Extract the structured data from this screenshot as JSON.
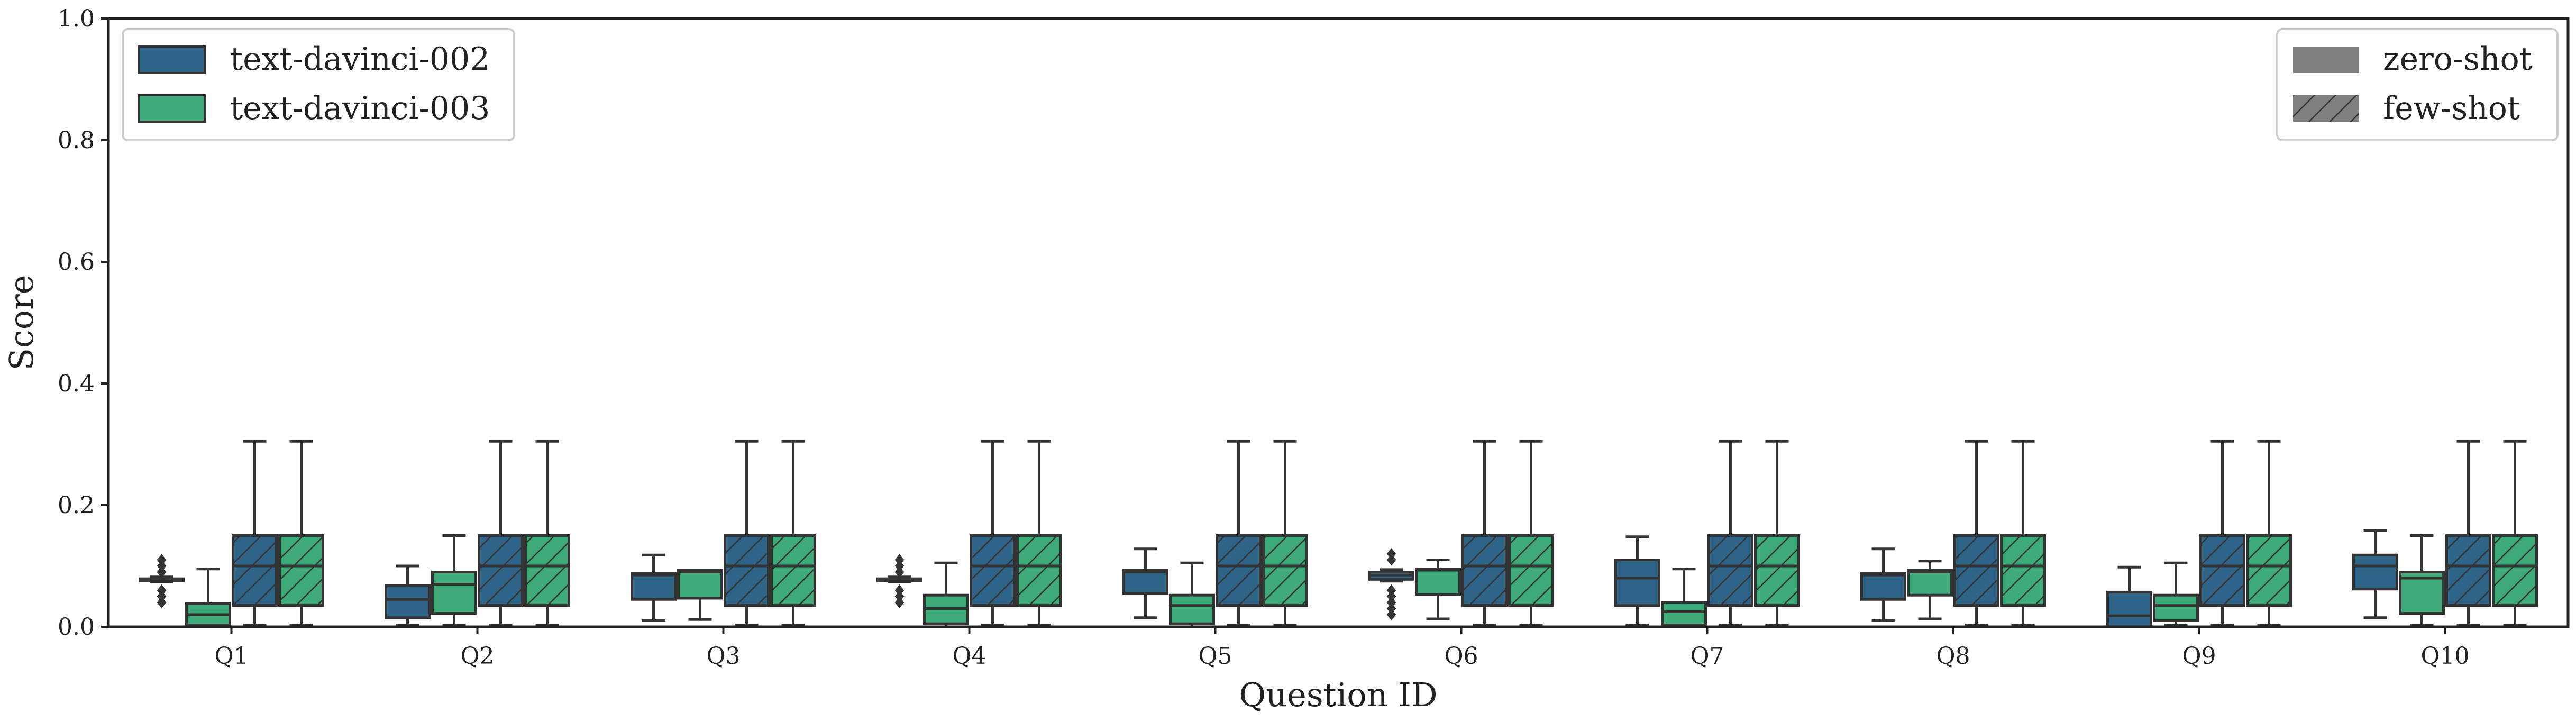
{
  "colors": {
    "text_davinci_002": "#2f6489",
    "text_davinci_003": "#3eaa78",
    "edge": "#333333",
    "legend_style_fill": "#808080"
  },
  "legend_models": [
    {
      "label": "text-davinci-002",
      "color_key": "text_davinci_002"
    },
    {
      "label": "text-davinci-003",
      "color_key": "text_davinci_003"
    }
  ],
  "legend_shots": [
    {
      "label": "zero-shot",
      "hatch": false
    },
    {
      "label": "few-shot",
      "hatch": true
    }
  ],
  "chart_data": {
    "type": "box",
    "xlabel": "Question ID",
    "ylabel": "Score",
    "ylim": [
      0,
      1.0
    ],
    "yticks": [
      "0.0",
      "0.2",
      "0.4",
      "0.6",
      "0.8",
      "1.0"
    ],
    "ytick_values": [
      0,
      0.2,
      0.4,
      0.6,
      0.8,
      1.0
    ],
    "grid": false,
    "categories": [
      "Q1",
      "Q2",
      "Q3",
      "Q4",
      "Q5",
      "Q6",
      "Q7",
      "Q8",
      "Q9",
      "Q10"
    ],
    "series": [
      {
        "name": "text-davinci-002 zero-shot",
        "model": "text_davinci_002",
        "hatch": false,
        "boxes": [
          {
            "whislo": 0.074,
            "q1": 0.076,
            "med": 0.078,
            "q3": 0.079,
            "whishi": 0.082,
            "fliers": [
              0.04,
              0.05,
              0.06,
              0.09,
              0.1,
              0.11
            ]
          },
          {
            "whislo": 0.003,
            "q1": 0.015,
            "med": 0.045,
            "q3": 0.068,
            "whishi": 0.1,
            "fliers": []
          },
          {
            "whislo": 0.01,
            "q1": 0.045,
            "med": 0.085,
            "q3": 0.088,
            "whishi": 0.118,
            "fliers": []
          },
          {
            "whislo": 0.074,
            "q1": 0.076,
            "med": 0.078,
            "q3": 0.079,
            "whishi": 0.082,
            "fliers": [
              0.04,
              0.05,
              0.06,
              0.09,
              0.1,
              0.11
            ]
          },
          {
            "whislo": 0.015,
            "q1": 0.055,
            "med": 0.09,
            "q3": 0.093,
            "whishi": 0.128,
            "fliers": []
          },
          {
            "whislo": 0.075,
            "q1": 0.078,
            "med": 0.085,
            "q3": 0.09,
            "whishi": 0.094,
            "fliers": [
              0.02,
              0.03,
              0.04,
              0.05,
              0.06,
              0.11,
              0.12
            ]
          },
          {
            "whislo": 0.003,
            "q1": 0.035,
            "med": 0.08,
            "q3": 0.11,
            "whishi": 0.148,
            "fliers": []
          },
          {
            "whislo": 0.01,
            "q1": 0.045,
            "med": 0.085,
            "q3": 0.088,
            "whishi": 0.128,
            "fliers": []
          },
          {
            "whislo": 0.0,
            "q1": 0.0,
            "med": 0.018,
            "q3": 0.057,
            "whishi": 0.098,
            "fliers": []
          },
          {
            "whislo": 0.015,
            "q1": 0.062,
            "med": 0.1,
            "q3": 0.118,
            "whishi": 0.158,
            "fliers": []
          }
        ]
      },
      {
        "name": "text-davinci-003 zero-shot",
        "model": "text_davinci_003",
        "hatch": false,
        "boxes": [
          {
            "whislo": 0.0,
            "q1": 0.003,
            "med": 0.02,
            "q3": 0.038,
            "whishi": 0.095,
            "fliers": []
          },
          {
            "whislo": 0.003,
            "q1": 0.022,
            "med": 0.07,
            "q3": 0.09,
            "whishi": 0.15,
            "fliers": []
          },
          {
            "whislo": 0.012,
            "q1": 0.047,
            "med": 0.09,
            "q3": 0.093,
            "whishi": 0.093,
            "fliers": []
          },
          {
            "whislo": 0.0,
            "q1": 0.005,
            "med": 0.03,
            "q3": 0.052,
            "whishi": 0.105,
            "fliers": []
          },
          {
            "whislo": 0.0,
            "q1": 0.005,
            "med": 0.035,
            "q3": 0.052,
            "whishi": 0.105,
            "fliers": []
          },
          {
            "whislo": 0.013,
            "q1": 0.053,
            "med": 0.093,
            "q3": 0.095,
            "whishi": 0.11,
            "fliers": []
          },
          {
            "whislo": 0.0,
            "q1": 0.003,
            "med": 0.025,
            "q3": 0.04,
            "whishi": 0.095,
            "fliers": []
          },
          {
            "whislo": 0.013,
            "q1": 0.052,
            "med": 0.09,
            "q3": 0.093,
            "whishi": 0.108,
            "fliers": []
          },
          {
            "whislo": 0.003,
            "q1": 0.01,
            "med": 0.035,
            "q3": 0.052,
            "whishi": 0.105,
            "fliers": []
          },
          {
            "whislo": 0.003,
            "q1": 0.022,
            "med": 0.08,
            "q3": 0.09,
            "whishi": 0.15,
            "fliers": []
          }
        ]
      },
      {
        "name": "text-davinci-002 few-shot",
        "model": "text_davinci_002",
        "hatch": true,
        "boxes": [
          {
            "whislo": 0.003,
            "q1": 0.035,
            "med": 0.1,
            "q3": 0.15,
            "whishi": 0.305,
            "fliers": []
          },
          {
            "whislo": 0.003,
            "q1": 0.035,
            "med": 0.1,
            "q3": 0.15,
            "whishi": 0.305,
            "fliers": []
          },
          {
            "whislo": 0.003,
            "q1": 0.035,
            "med": 0.1,
            "q3": 0.15,
            "whishi": 0.305,
            "fliers": []
          },
          {
            "whislo": 0.003,
            "q1": 0.035,
            "med": 0.1,
            "q3": 0.15,
            "whishi": 0.305,
            "fliers": []
          },
          {
            "whislo": 0.003,
            "q1": 0.035,
            "med": 0.1,
            "q3": 0.15,
            "whishi": 0.305,
            "fliers": []
          },
          {
            "whislo": 0.003,
            "q1": 0.035,
            "med": 0.1,
            "q3": 0.15,
            "whishi": 0.305,
            "fliers": []
          },
          {
            "whislo": 0.003,
            "q1": 0.035,
            "med": 0.1,
            "q3": 0.15,
            "whishi": 0.305,
            "fliers": []
          },
          {
            "whislo": 0.003,
            "q1": 0.035,
            "med": 0.1,
            "q3": 0.15,
            "whishi": 0.305,
            "fliers": []
          },
          {
            "whislo": 0.003,
            "q1": 0.035,
            "med": 0.1,
            "q3": 0.15,
            "whishi": 0.305,
            "fliers": []
          },
          {
            "whislo": 0.003,
            "q1": 0.035,
            "med": 0.1,
            "q3": 0.15,
            "whishi": 0.305,
            "fliers": []
          }
        ]
      },
      {
        "name": "text-davinci-003 few-shot",
        "model": "text_davinci_003",
        "hatch": true,
        "boxes": [
          {
            "whislo": 0.003,
            "q1": 0.035,
            "med": 0.1,
            "q3": 0.15,
            "whishi": 0.305,
            "fliers": []
          },
          {
            "whislo": 0.003,
            "q1": 0.035,
            "med": 0.1,
            "q3": 0.15,
            "whishi": 0.305,
            "fliers": []
          },
          {
            "whislo": 0.003,
            "q1": 0.035,
            "med": 0.1,
            "q3": 0.15,
            "whishi": 0.305,
            "fliers": []
          },
          {
            "whislo": 0.003,
            "q1": 0.035,
            "med": 0.1,
            "q3": 0.15,
            "whishi": 0.305,
            "fliers": []
          },
          {
            "whislo": 0.003,
            "q1": 0.035,
            "med": 0.1,
            "q3": 0.15,
            "whishi": 0.305,
            "fliers": []
          },
          {
            "whislo": 0.003,
            "q1": 0.035,
            "med": 0.1,
            "q3": 0.15,
            "whishi": 0.305,
            "fliers": []
          },
          {
            "whislo": 0.003,
            "q1": 0.035,
            "med": 0.1,
            "q3": 0.15,
            "whishi": 0.305,
            "fliers": []
          },
          {
            "whislo": 0.003,
            "q1": 0.035,
            "med": 0.1,
            "q3": 0.15,
            "whishi": 0.305,
            "fliers": []
          },
          {
            "whislo": 0.003,
            "q1": 0.035,
            "med": 0.1,
            "q3": 0.15,
            "whishi": 0.305,
            "fliers": []
          },
          {
            "whislo": 0.003,
            "q1": 0.035,
            "med": 0.1,
            "q3": 0.15,
            "whishi": 0.305,
            "fliers": []
          }
        ]
      }
    ]
  }
}
